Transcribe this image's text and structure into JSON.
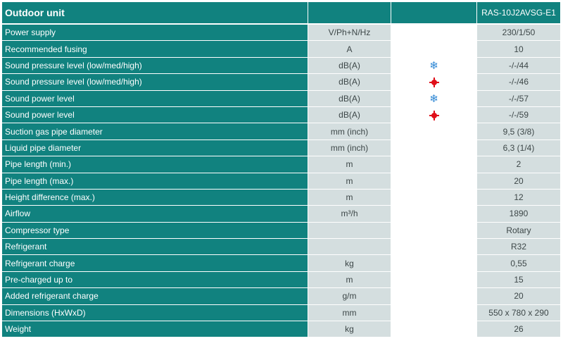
{
  "header": {
    "title": "Outdoor unit",
    "model": "RAS-10J2AVSG-E1"
  },
  "rows": [
    {
      "label": "Power supply",
      "unit": "V/Ph+N/Hz",
      "icon": "",
      "value": "230/1/50"
    },
    {
      "label": "Recommended fusing",
      "unit": "A",
      "icon": "",
      "value": "10"
    },
    {
      "label": "Sound pressure level (low/med/high)",
      "unit": "dB(A)",
      "icon": "snowflake-icon",
      "value": "-/-/44"
    },
    {
      "label": "Sound pressure level (low/med/high)",
      "unit": "dB(A)",
      "icon": "sun-icon",
      "value": "-/-/46"
    },
    {
      "label": "Sound power level",
      "unit": "dB(A)",
      "icon": "snowflake-icon",
      "value": "-/-/57"
    },
    {
      "label": "Sound power level",
      "unit": "dB(A)",
      "icon": "sun-icon",
      "value": "-/-/59"
    },
    {
      "label": "Suction gas pipe diameter",
      "unit": "mm (inch)",
      "icon": "",
      "value": "9,5 (3/8)"
    },
    {
      "label": "Liquid pipe diameter",
      "unit": "mm (inch)",
      "icon": "",
      "value": "6,3 (1/4)"
    },
    {
      "label": "Pipe length (min.)",
      "unit": "m",
      "icon": "",
      "value": "2"
    },
    {
      "label": "Pipe length (max.)",
      "unit": "m",
      "icon": "",
      "value": "20"
    },
    {
      "label": "Height difference (max.)",
      "unit": "m",
      "icon": "",
      "value": "12"
    },
    {
      "label": "Airflow",
      "unit": "m³/h",
      "icon": "",
      "value": "1890"
    },
    {
      "label": "Compressor type",
      "unit": "",
      "icon": "",
      "value": "Rotary"
    },
    {
      "label": "Refrigerant",
      "unit": "",
      "icon": "",
      "value": "R32"
    },
    {
      "label": "Refrigerant charge",
      "unit": "kg",
      "icon": "",
      "value": "0,55"
    },
    {
      "label": "Pre-charged up to",
      "unit": "m",
      "icon": "",
      "value": "15"
    },
    {
      "label": "Added refrigerant charge",
      "unit": "g/m",
      "icon": "",
      "value": "20"
    },
    {
      "label": "Dimensions (HxWxD)",
      "unit": "mm",
      "icon": "",
      "value": "550 x 780 x 290"
    },
    {
      "label": "Weight",
      "unit": "kg",
      "icon": "",
      "value": "26"
    }
  ],
  "colors": {
    "teal": "#11827f",
    "light": "#d4dedf",
    "snowflake": "#2d86d4",
    "sun": "#e0101a"
  }
}
